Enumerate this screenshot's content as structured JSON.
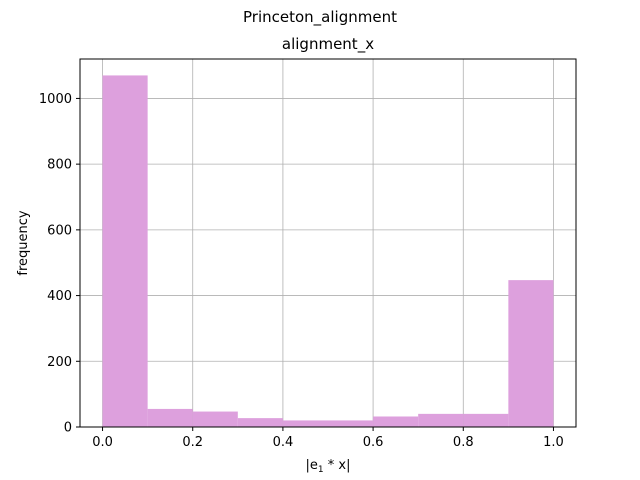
{
  "figure": {
    "suptitle": "Princeton_alignment"
  },
  "chart_data": {
    "type": "bar",
    "title": "alignment_x",
    "xlabel_main": "|e",
    "xlabel_sub": "1",
    "xlabel_tail": " * x|",
    "ylabel": "frequency",
    "xlim": [
      -0.05,
      1.05
    ],
    "ylim": [
      0,
      1120
    ],
    "xticks": [
      0.0,
      0.2,
      0.4,
      0.6,
      0.8,
      1.0
    ],
    "xtick_labels": [
      "0.0",
      "0.2",
      "0.4",
      "0.6",
      "0.8",
      "1.0"
    ],
    "yticks": [
      0,
      200,
      400,
      600,
      800,
      1000
    ],
    "ytick_labels": [
      "0",
      "200",
      "400",
      "600",
      "800",
      "1000"
    ],
    "grid": true,
    "bin_edges": [
      0.0,
      0.1,
      0.2,
      0.3,
      0.4,
      0.5,
      0.6,
      0.7,
      0.8,
      0.9,
      1.0
    ],
    "values": [
      1070,
      55,
      47,
      27,
      20,
      20,
      32,
      40,
      40,
      447
    ],
    "bar_color": "#dda0dd"
  }
}
